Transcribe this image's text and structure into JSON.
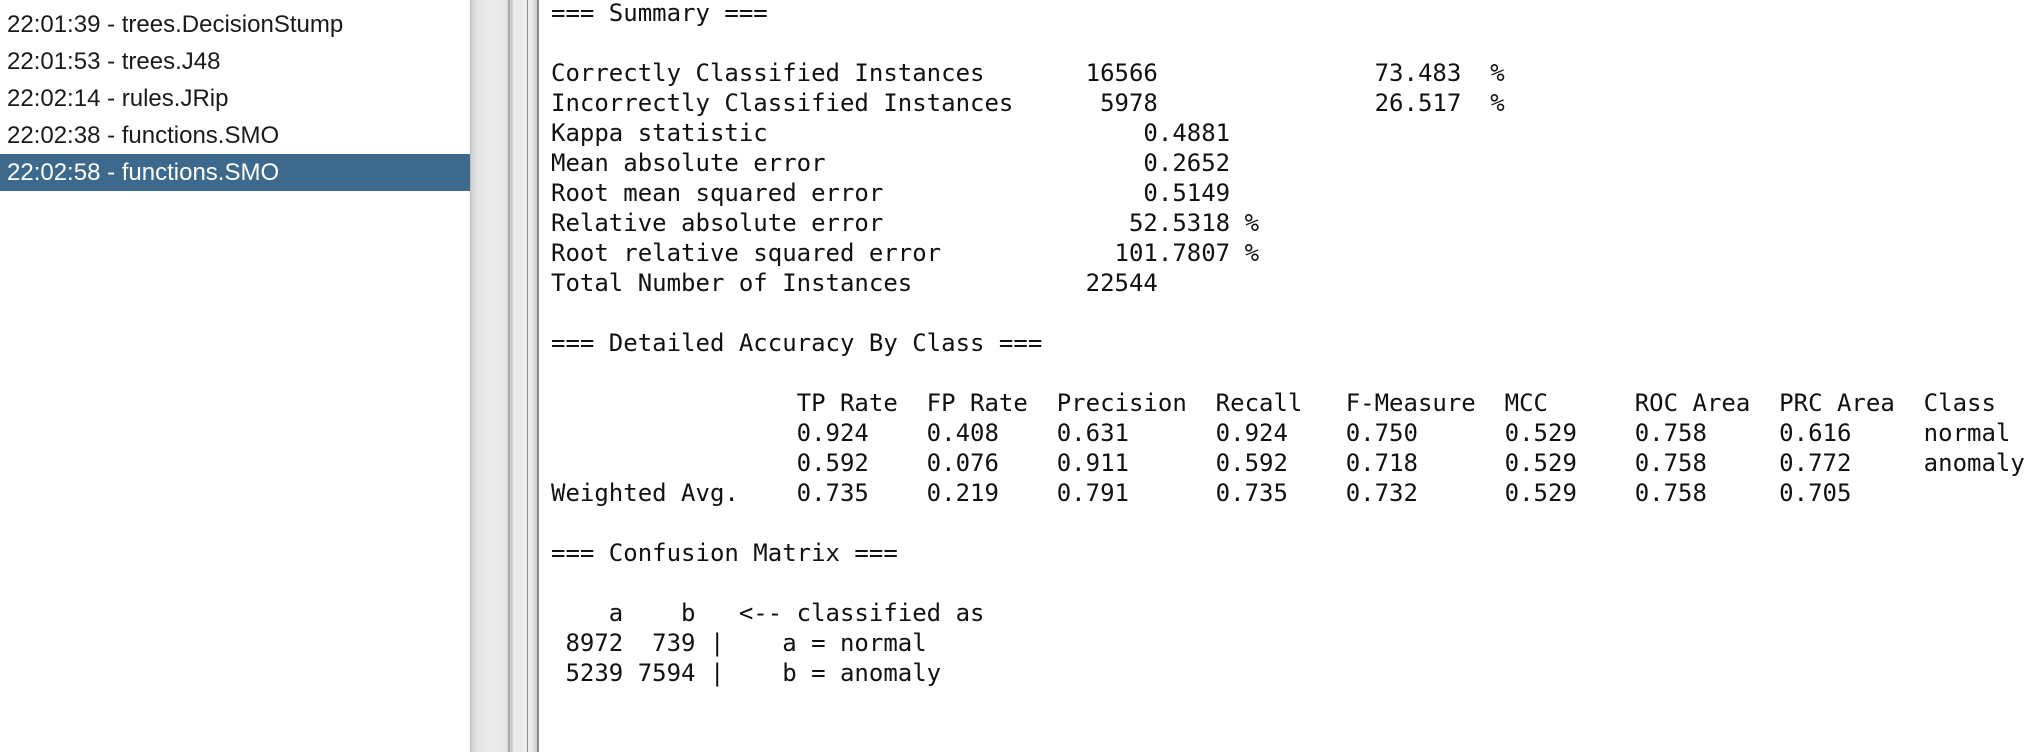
{
  "result_list": {
    "items": [
      {
        "time": "22:01:39",
        "classifier": "trees.DecisionStump",
        "label": "22:01:39 - trees.DecisionStump"
      },
      {
        "time": "22:01:53",
        "classifier": "trees.J48",
        "label": "22:01:53 - trees.J48"
      },
      {
        "time": "22:02:14",
        "classifier": "rules.JRip",
        "label": "22:02:14 - rules.JRip"
      },
      {
        "time": "22:02:38",
        "classifier": "functions.SMO",
        "label": "22:02:38 - functions.SMO"
      },
      {
        "time": "22:02:58",
        "classifier": "functions.SMO",
        "label": "22:02:58 - functions.SMO",
        "selected": true
      }
    ],
    "selected_color": "#3d6a8c"
  },
  "output": {
    "lines": [
      "                                     ...",
      "=== Summary ===",
      "",
      "Correctly Classified Instances       16566               73.483  %",
      "Incorrectly Classified Instances      5978               26.517  %",
      "Kappa statistic                          0.4881",
      "Mean absolute error                      0.2652",
      "Root mean squared error                  0.5149",
      "Relative absolute error                 52.5318 %",
      "Root relative squared error            101.7807 %",
      "Total Number of Instances            22544     ",
      "",
      "=== Detailed Accuracy By Class ===",
      "",
      "                 TP Rate  FP Rate  Precision  Recall   F-Measure  MCC      ROC Area  PRC Area  Class",
      "                 0.924    0.408    0.631      0.924    0.750      0.529    0.758     0.616     normal",
      "                 0.592    0.076    0.911      0.592    0.718      0.529    0.758     0.772     anomaly",
      "Weighted Avg.    0.735    0.219    0.791      0.735    0.732      0.529    0.758     0.705     ",
      "",
      "=== Confusion Matrix ===",
      "",
      "    a    b   <-- classified as",
      " 8972  739 |    a = normal",
      " 5239 7594 |    b = anomaly"
    ]
  }
}
